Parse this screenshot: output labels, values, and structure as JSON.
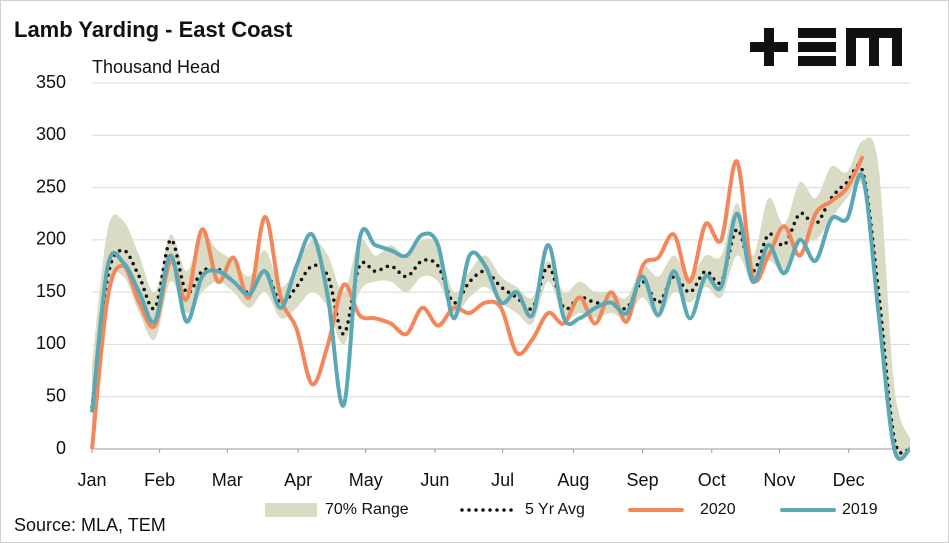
{
  "chart_data": {
    "type": "line",
    "title": "Lamb Yarding - East Coast",
    "y_label": "Thousand Head",
    "source": "Source: MLA, TEM",
    "x": [
      0,
      1,
      2,
      3,
      4,
      5,
      6,
      7,
      8,
      9,
      10,
      11,
      12,
      13,
      14,
      15,
      16,
      17,
      18,
      19,
      20,
      21,
      22,
      23,
      24,
      25,
      26,
      27,
      28,
      29,
      30,
      31,
      32,
      33,
      34,
      35,
      36,
      37,
      38,
      39,
      40,
      41,
      42,
      43,
      44,
      45,
      46,
      47,
      48,
      49,
      50,
      51,
      52
    ],
    "xlim": [
      0,
      52
    ],
    "xticks": [
      {
        "value": 0,
        "label": "Jan"
      },
      {
        "value": 4.3,
        "label": "Feb"
      },
      {
        "value": 8.6,
        "label": "Mar"
      },
      {
        "value": 13.1,
        "label": "Apr"
      },
      {
        "value": 17.4,
        "label": "May"
      },
      {
        "value": 21.8,
        "label": "Jun"
      },
      {
        "value": 26.1,
        "label": "Jul"
      },
      {
        "value": 30.6,
        "label": "Aug"
      },
      {
        "value": 35.0,
        "label": "Sep"
      },
      {
        "value": 39.4,
        "label": "Oct"
      },
      {
        "value": 43.7,
        "label": "Nov"
      },
      {
        "value": 48.1,
        "label": "Dec"
      }
    ],
    "ylim": [
      0,
      350
    ],
    "yticks": [
      0,
      50,
      100,
      150,
      200,
      250,
      300,
      350
    ],
    "grid": true,
    "series": [
      {
        "name": "70% Range",
        "kind": "range",
        "color": "#d9dbc4",
        "low": [
          0,
          150,
          165,
          130,
          105,
          160,
          130,
          150,
          160,
          150,
          135,
          150,
          125,
          135,
          150,
          135,
          100,
          150,
          160,
          160,
          150,
          165,
          160,
          130,
          145,
          155,
          140,
          130,
          120,
          160,
          125,
          130,
          125,
          130,
          125,
          145,
          125,
          150,
          140,
          155,
          145,
          185,
          160,
          180,
          170,
          200,
          200,
          220,
          240,
          250,
          140,
          0,
          0
        ],
        "high": [
          80,
          210,
          218,
          185,
          150,
          205,
          170,
          205,
          190,
          180,
          165,
          190,
          155,
          175,
          200,
          185,
          150,
          200,
          185,
          195,
          185,
          200,
          195,
          150,
          170,
          185,
          165,
          155,
          145,
          180,
          150,
          160,
          150,
          150,
          145,
          175,
          165,
          185,
          165,
          185,
          185,
          235,
          185,
          240,
          215,
          255,
          240,
          270,
          265,
          295,
          270,
          60,
          10
        ]
      },
      {
        "name": "5 Yr Avg",
        "kind": "dotted",
        "color": "#111111",
        "values": [
          40,
          165,
          190,
          165,
          135,
          200,
          150,
          170,
          172,
          160,
          150,
          170,
          140,
          155,
          175,
          165,
          110,
          175,
          170,
          175,
          165,
          180,
          175,
          140,
          160,
          170,
          155,
          145,
          135,
          175,
          135,
          145,
          140,
          140,
          135,
          160,
          140,
          165,
          150,
          170,
          160,
          210,
          170,
          205,
          195,
          225,
          215,
          240,
          255,
          265,
          150,
          10,
          0
        ]
      },
      {
        "name": "2020",
        "kind": "line",
        "color": "#f4875a",
        "values": [
          0,
          145,
          175,
          140,
          118,
          180,
          143,
          210,
          160,
          183,
          145,
          222,
          145,
          115,
          62,
          100,
          157,
          128,
          125,
          120,
          110,
          135,
          118,
          135,
          130,
          140,
          135,
          92,
          105,
          130,
          120,
          145,
          120,
          150,
          122,
          175,
          183,
          205,
          160,
          215,
          200,
          275,
          165,
          185,
          213,
          185,
          225,
          237,
          250,
          280,
          null,
          null,
          null
        ]
      },
      {
        "name": "2019",
        "kind": "line",
        "color": "#5aa8b4",
        "values": [
          35,
          175,
          178,
          150,
          122,
          185,
          122,
          165,
          170,
          160,
          148,
          170,
          135,
          175,
          205,
          145,
          42,
          200,
          195,
          190,
          185,
          205,
          195,
          125,
          185,
          175,
          140,
          150,
          128,
          195,
          125,
          125,
          135,
          140,
          130,
          165,
          128,
          170,
          125,
          165,
          155,
          225,
          160,
          195,
          168,
          200,
          180,
          220,
          220,
          260,
          130,
          0,
          0
        ]
      }
    ]
  }
}
